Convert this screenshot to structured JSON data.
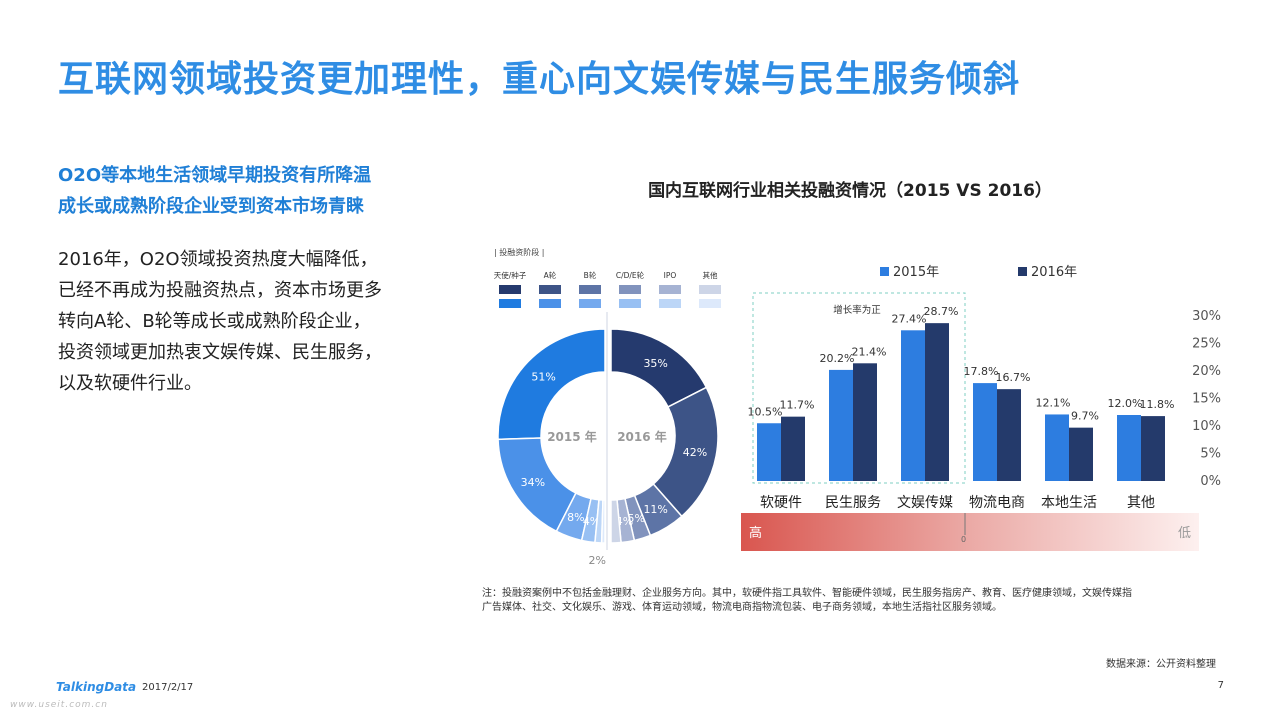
{
  "title": "互联网领域投资更加理性，重心向文娱传媒与民生服务倾斜",
  "subheading": {
    "line1": "O2O等本地生活领域早期投资有所降温",
    "line2": "成长或成熟阶段企业受到资本市场青睐"
  },
  "body": {
    "lines": [
      "2016年，O2O领域投资热度大幅降低，",
      "已经不再成为投融资热点，资本市场更多",
      "转向A轮、B轮等成长或成熟阶段企业，",
      "投资领域更加热衷文娱传媒、民生服务，",
      "以及软硬件行业。"
    ]
  },
  "chart_data": [
    {
      "type": "pie",
      "legend_title": "| 投融资阶段 |",
      "categories": [
        "天使/种子",
        "A轮",
        "B轮",
        "C/D/E轮",
        "IPO",
        "其他"
      ],
      "colors_2016": [
        "#253a6e",
        "#3d5487",
        "#5d74a6",
        "#8193bd",
        "#a6b3d3",
        "#cdd5e7"
      ],
      "colors_2015": [
        "#1f7be0",
        "#4b91e8",
        "#74a9ee",
        "#98c0f3",
        "#bcd6f7",
        "#dde9fb"
      ],
      "series": [
        {
          "name": "2015 年",
          "values": [
            51,
            34,
            8,
            4,
            2,
            1
          ],
          "labels": [
            "51%",
            "34%",
            "8%",
            "4%",
            "2%",
            ""
          ]
        },
        {
          "name": "2016 年",
          "values": [
            35,
            42,
            11,
            5,
            4,
            3
          ],
          "labels": [
            "35%",
            "42%",
            "11%",
            "5%",
            "4%",
            ""
          ]
        }
      ]
    },
    {
      "type": "bar",
      "title": "国内互联网行业相关投融资情况（2015 VS 2016）",
      "categories": [
        "软硬件",
        "民生服务",
        "文娱传媒",
        "物流电商",
        "本地生活",
        "其他"
      ],
      "series": [
        {
          "name": "2015年",
          "color": "#2d7de0",
          "values": [
            10.5,
            20.2,
            27.4,
            17.8,
            12.1,
            12.0
          ],
          "labels": [
            "10.5%",
            "20.2%",
            "27.4%",
            "17.8%",
            "12.1%",
            "12.0%"
          ]
        },
        {
          "name": "2016年",
          "color": "#243a6b",
          "values": [
            11.7,
            21.4,
            28.7,
            16.7,
            9.7,
            11.8
          ],
          "labels": [
            "11.7%",
            "21.4%",
            "28.7%",
            "16.7%",
            "9.7%",
            "11.8%"
          ]
        }
      ],
      "ylim": [
        0,
        30
      ],
      "yticks": [
        0,
        5,
        10,
        15,
        20,
        25,
        30
      ],
      "ytick_labels": [
        "0%",
        "5%",
        "10%",
        "15%",
        "20%",
        "25%",
        "30%"
      ],
      "legend_position": "top",
      "annotation": "增长率为正",
      "gradient_bar": {
        "high_label": "高",
        "low_label": "低",
        "zero_label": "0"
      }
    }
  ],
  "footnote": [
    "注：投融资案例中不包括金融理财、企业服务方向。其中，软硬件指工具软件、智能硬件领域，民生服务指房产、教育、医疗健康领域，文娱传媒指",
    "广告媒体、社交、文化娱乐、游戏、体育运动领域，物流电商指物流包装、电子商务领域，本地生活指社区服务领域。"
  ],
  "source": "数据来源：公开资料整理",
  "footer": {
    "logo": "TalkingData",
    "date": "2017/2/17",
    "page": "7",
    "watermark": "www.useit.com.cn"
  }
}
